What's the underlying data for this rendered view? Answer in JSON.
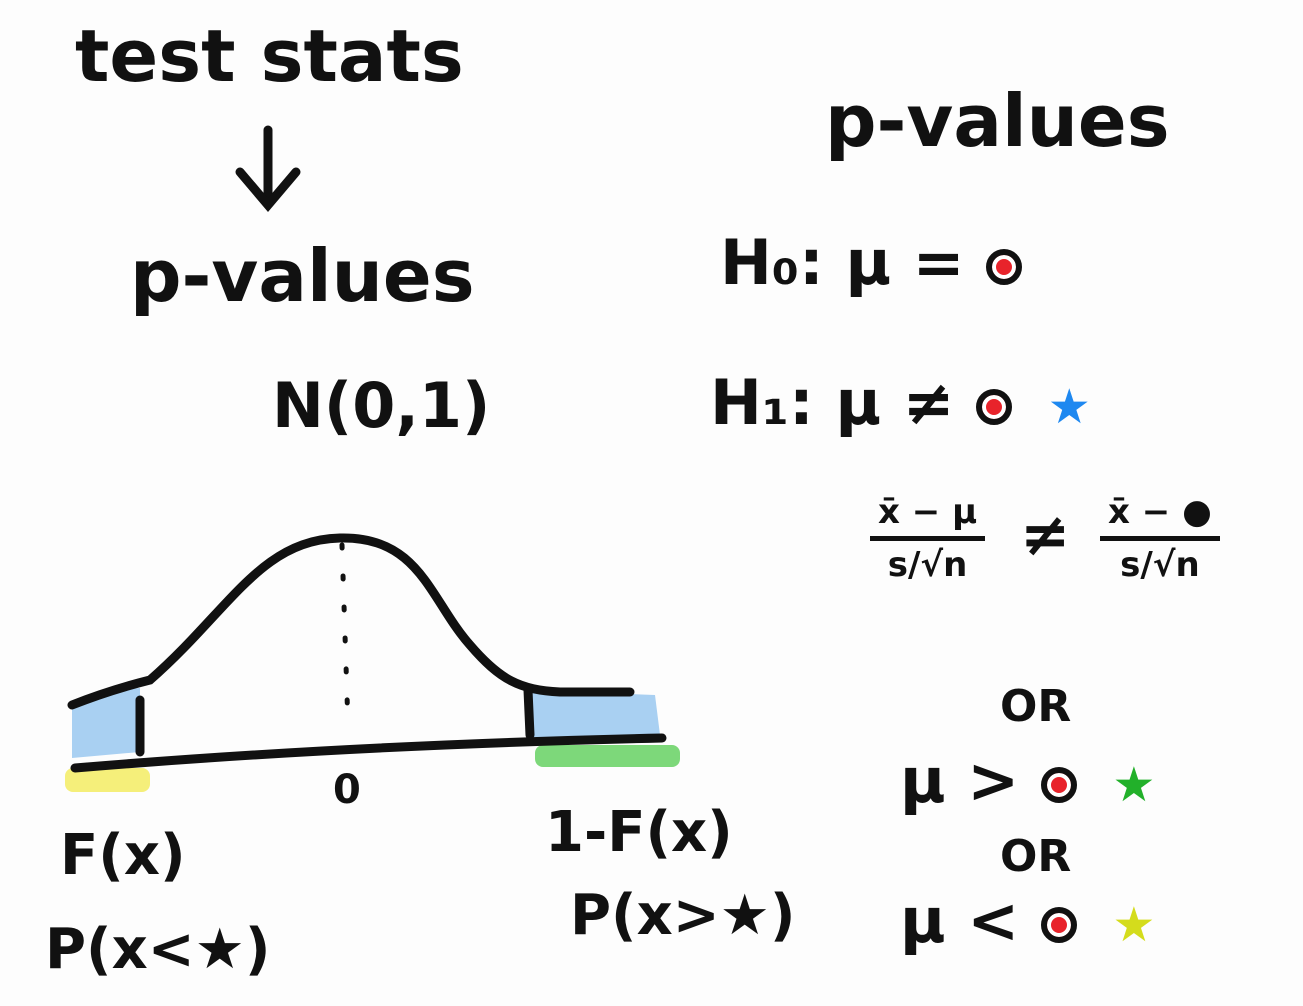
{
  "left": {
    "title": "test stats",
    "subtitle": "p-values",
    "distribution": "N(0,1)",
    "axis_center_label": "0",
    "left_tail_label": "F(x)",
    "left_tail_prob": "P(x<★)",
    "right_tail_label": "1-F(x)",
    "right_tail_prob": "P(x>★)",
    "colors": {
      "tail_fill": "#a9d0f2",
      "left_highlight": "#f5ef7a",
      "right_highlight": "#7dd87a"
    }
  },
  "right": {
    "title": "p-values",
    "h0": {
      "label": "H₀:",
      "expr": "μ ="
    },
    "h1": {
      "label": "H₁:",
      "expr": "μ ≠",
      "star_color": "#1e88f0"
    },
    "fraction_left": {
      "num": "x̄ − μ",
      "den": "s/√n"
    },
    "neq": "≠",
    "fraction_right": {
      "num": "x̄ − ●",
      "den": "s/√n"
    },
    "or1": "OR",
    "greater": {
      "expr": "μ  >",
      "star_color": "#22b02a"
    },
    "or2": "OR",
    "less": {
      "expr": "μ  <",
      "star_color": "#d4dc1c"
    },
    "dot_color": "#e8232b"
  }
}
